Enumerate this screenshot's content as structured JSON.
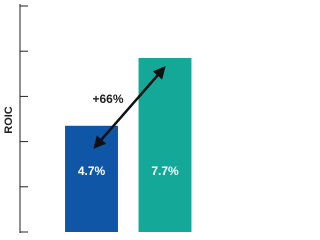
{
  "chart_data": {
    "type": "bar",
    "ylabel": "ROIC",
    "annotation": "+66%",
    "categories": [
      null,
      null
    ],
    "values": [
      4.7,
      7.7
    ],
    "value_labels": [
      "4.7%",
      "7.7%"
    ],
    "colors": [
      "#0f56a6",
      "#14a898"
    ],
    "ylim": [
      0,
      10
    ],
    "yticks": [
      0,
      2,
      4,
      6,
      8,
      10
    ]
  }
}
